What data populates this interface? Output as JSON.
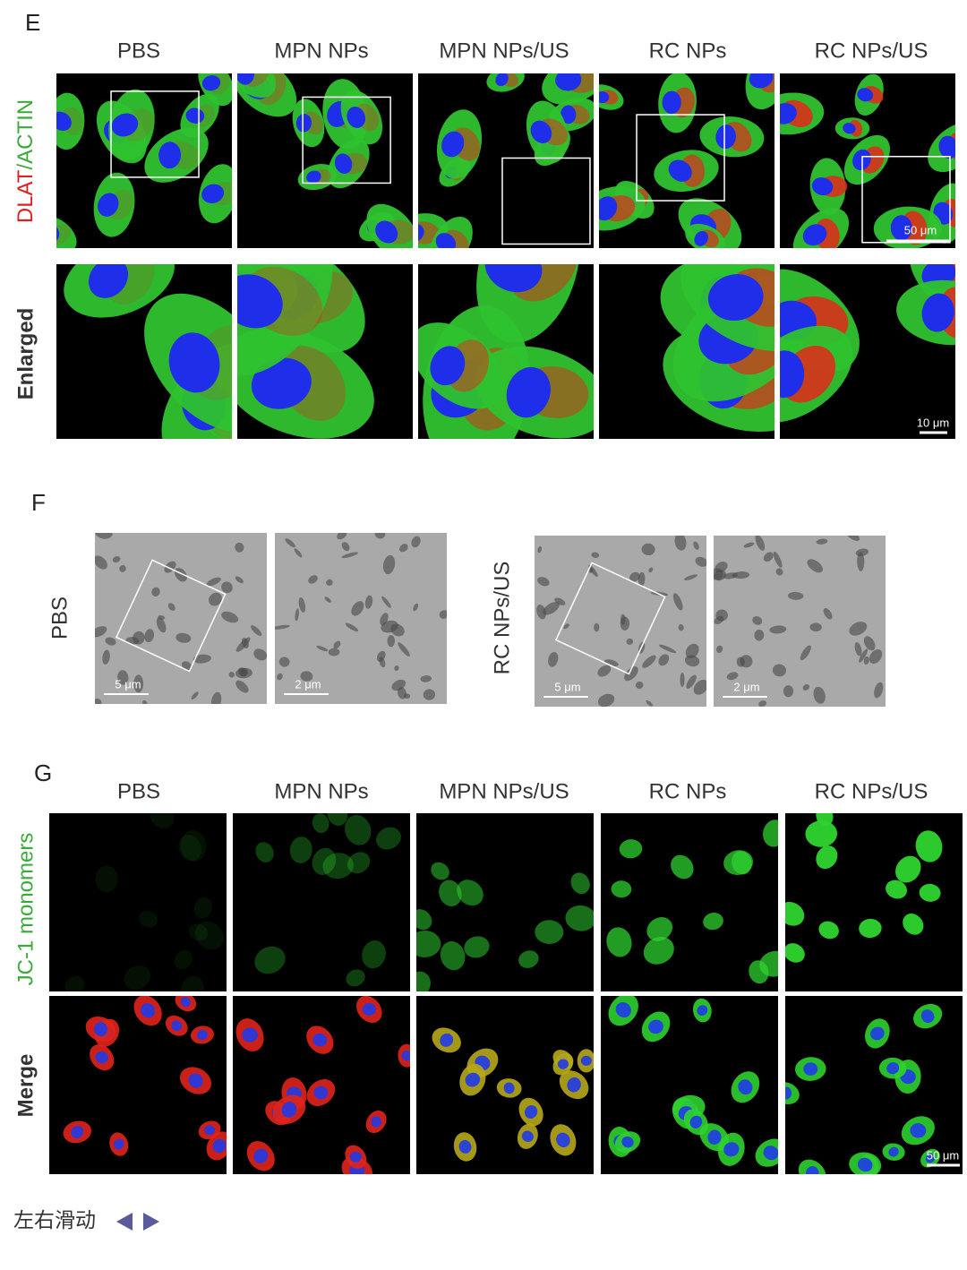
{
  "panel_e": {
    "label": "E",
    "columns": [
      "PBS",
      "MPN NPs",
      "MPN NPs/US",
      "RC NPs",
      "RC NPs/US"
    ],
    "row_labels": [
      [
        "DLAT",
        "/",
        "ACTIN"
      ],
      [
        "Enlarged"
      ]
    ],
    "scale_bars": [
      "50 μm",
      "10 μm"
    ]
  },
  "panel_f": {
    "label": "F",
    "groups": [
      {
        "name": "PBS",
        "scale_bars": [
          "5 μm",
          "2 μm"
        ]
      },
      {
        "name": "RC NPs/US",
        "scale_bars": [
          "5 μm",
          "2 μm"
        ]
      }
    ]
  },
  "panel_g": {
    "label": "G",
    "columns": [
      "PBS",
      "MPN NPs",
      "MPN NPs/US",
      "RC NPs",
      "RC NPs/US"
    ],
    "row_labels": [
      "JC-1 monomers",
      "Merge"
    ],
    "scale_bar": "50 μm"
  },
  "footer": {
    "swipe_hint": "左右滑动"
  }
}
